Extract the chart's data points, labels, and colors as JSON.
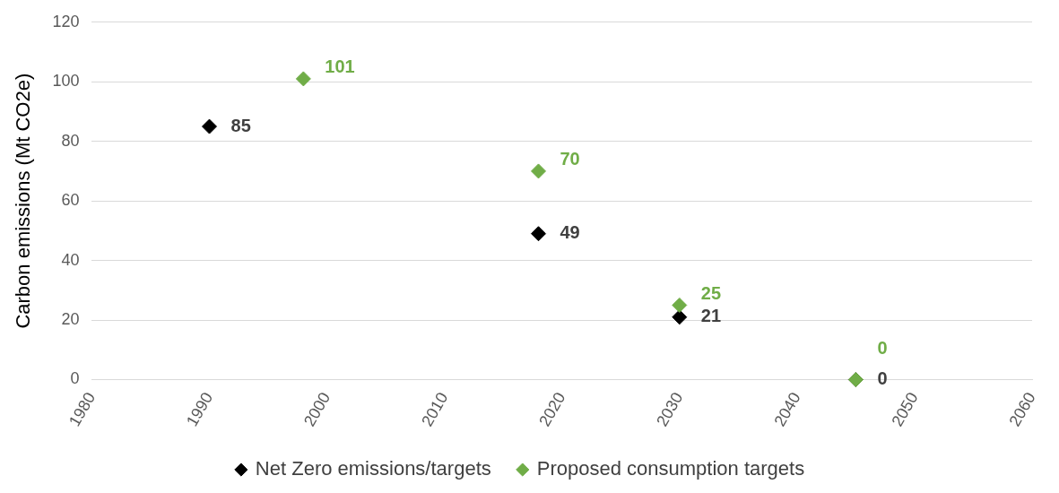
{
  "chart_data": {
    "type": "scatter",
    "ylabel": "Carbon emissions (Mt CO2e)",
    "xlim": [
      1980,
      2060
    ],
    "xticks": [
      1980,
      1990,
      2000,
      2010,
      2020,
      2030,
      2040,
      2050,
      2060
    ],
    "ylim": [
      0,
      120
    ],
    "yticks": [
      0,
      20,
      40,
      60,
      80,
      100,
      120
    ],
    "series": [
      {
        "name": "Net Zero emissions/targets",
        "color": "#000000",
        "x": [
          1990,
          2018,
          2030,
          2045
        ],
        "values": [
          85,
          49,
          21,
          0
        ]
      },
      {
        "name": "Proposed consumption targets",
        "color": "#70ad47",
        "x": [
          1998,
          2018,
          2030,
          2045
        ],
        "values": [
          101,
          70,
          25,
          0
        ]
      }
    ],
    "marker": "diamond",
    "grid": "y",
    "legend": "bottom",
    "data_labels": true
  }
}
